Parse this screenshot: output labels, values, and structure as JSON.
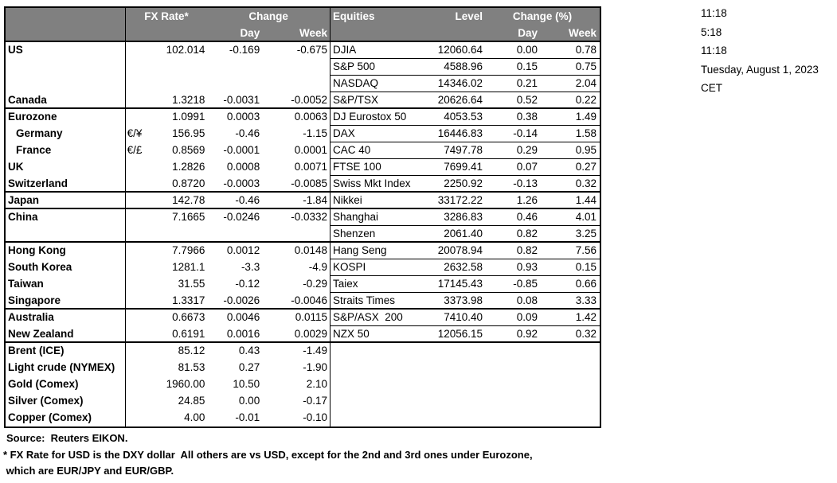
{
  "colors": {
    "header_bg": "#808080",
    "header_text": "#ffffff",
    "border": "#000000",
    "text": "#000000"
  },
  "fx_header": {
    "rate_label": "FX Rate*",
    "change_label": "Change",
    "day_label": "Day",
    "week_label": "Week"
  },
  "eq_header": {
    "name_label": "Equities",
    "level_label": "Level",
    "change_label": "Change (%)",
    "day_label": "Day",
    "week_label": "Week"
  },
  "rows": [
    {
      "fx_label": "US",
      "fx_pair": "",
      "fx_rate": "102.014",
      "fx_day": "-0.169",
      "fx_week": "-0.675",
      "eq_name": "DJIA",
      "eq_level": "12060.64",
      "eq_day": "0.00",
      "eq_week": "0.78",
      "section": false,
      "indent": false,
      "eq_border": true
    },
    {
      "fx_label": "",
      "fx_pair": "",
      "fx_rate": "",
      "fx_day": "",
      "fx_week": "",
      "eq_name": "S&P 500",
      "eq_level": "4588.96",
      "eq_day": "0.15",
      "eq_week": "0.75",
      "section": false,
      "indent": false,
      "eq_border": true
    },
    {
      "fx_label": "",
      "fx_pair": "",
      "fx_rate": "",
      "fx_day": "",
      "fx_week": "",
      "eq_name": "NASDAQ",
      "eq_level": "14346.02",
      "eq_day": "0.21",
      "eq_week": "2.04",
      "section": false,
      "indent": false,
      "eq_border": true
    },
    {
      "fx_label": "Canada",
      "fx_pair": "",
      "fx_rate": "1.3218",
      "fx_day": "-0.0031",
      "fx_week": "-0.0052",
      "eq_name": "S&P/TSX",
      "eq_level": "20626.64",
      "eq_day": "0.52",
      "eq_week": "0.22",
      "section": true,
      "indent": false,
      "eq_border": false
    },
    {
      "fx_label": "Eurozone",
      "fx_pair": "",
      "fx_rate": "1.0991",
      "fx_day": "0.0003",
      "fx_week": "0.0063",
      "eq_name": "DJ Eurostox 50",
      "eq_level": "4053.53",
      "eq_day": "0.38",
      "eq_week": "1.49",
      "section": false,
      "indent": false,
      "eq_border": true
    },
    {
      "fx_label": "Germany",
      "fx_pair": "€/¥",
      "fx_rate": "156.95",
      "fx_day": "-0.46",
      "fx_week": "-1.15",
      "eq_name": "DAX",
      "eq_level": "16446.83",
      "eq_day": "-0.14",
      "eq_week": "1.58",
      "section": false,
      "indent": true,
      "eq_border": true
    },
    {
      "fx_label": "France",
      "fx_pair": "€/£",
      "fx_rate": "0.8569",
      "fx_day": "-0.0001",
      "fx_week": "0.0001",
      "eq_name": "CAC 40",
      "eq_level": "7497.78",
      "eq_day": "0.29",
      "eq_week": "0.95",
      "section": false,
      "indent": true,
      "eq_border": true
    },
    {
      "fx_label": "UK",
      "fx_pair": "",
      "fx_rate": "1.2826",
      "fx_day": "0.0008",
      "fx_week": "0.0071",
      "eq_name": "FTSE 100",
      "eq_level": "7699.41",
      "eq_day": "0.07",
      "eq_week": "0.27",
      "section": false,
      "indent": false,
      "eq_border": true
    },
    {
      "fx_label": "Switzerland",
      "fx_pair": "",
      "fx_rate": "0.8720",
      "fx_day": "-0.0003",
      "fx_week": "-0.0085",
      "eq_name": "Swiss Mkt Index",
      "eq_level": "2250.92",
      "eq_day": "-0.13",
      "eq_week": "0.32",
      "section": true,
      "indent": false,
      "eq_border": false
    },
    {
      "fx_label": "Japan",
      "fx_pair": "",
      "fx_rate": "142.78",
      "fx_day": "-0.46",
      "fx_week": "-1.84",
      "eq_name": "Nikkei",
      "eq_level": "33172.22",
      "eq_day": "1.26",
      "eq_week": "1.44",
      "section": true,
      "indent": false,
      "eq_border": false
    },
    {
      "fx_label": "China",
      "fx_pair": "",
      "fx_rate": "7.1665",
      "fx_day": "-0.0246",
      "fx_week": "-0.0332",
      "eq_name": "Shanghai",
      "eq_level": "3286.83",
      "eq_day": "0.46",
      "eq_week": "4.01",
      "section": false,
      "indent": false,
      "eq_border": true
    },
    {
      "fx_label": "",
      "fx_pair": "",
      "fx_rate": "",
      "fx_day": "",
      "fx_week": "",
      "eq_name": "Shenzen",
      "eq_level": "2061.40",
      "eq_day": "0.82",
      "eq_week": "3.25",
      "section": true,
      "indent": false,
      "eq_border": false
    },
    {
      "fx_label": "Hong Kong",
      "fx_pair": "",
      "fx_rate": "7.7966",
      "fx_day": "0.0012",
      "fx_week": "0.0148",
      "eq_name": "Hang Seng",
      "eq_level": "20078.94",
      "eq_day": "0.82",
      "eq_week": "7.56",
      "section": false,
      "indent": false,
      "eq_border": true
    },
    {
      "fx_label": "South Korea",
      "fx_pair": "",
      "fx_rate": "1281.1",
      "fx_day": "-3.3",
      "fx_week": "-4.9",
      "eq_name": "KOSPI",
      "eq_level": "2632.58",
      "eq_day": "0.93",
      "eq_week": "0.15",
      "section": false,
      "indent": false,
      "eq_border": true
    },
    {
      "fx_label": "Taiwan",
      "fx_pair": "",
      "fx_rate": "31.55",
      "fx_day": "-0.12",
      "fx_week": "-0.29",
      "eq_name": "Taiex",
      "eq_level": "17145.43",
      "eq_day": "-0.85",
      "eq_week": "0.66",
      "section": false,
      "indent": false,
      "eq_border": true
    },
    {
      "fx_label": "Singapore",
      "fx_pair": "",
      "fx_rate": "1.3317",
      "fx_day": "-0.0026",
      "fx_week": "-0.0046",
      "eq_name": "Straits Times",
      "eq_level": "3373.98",
      "eq_day": "0.08",
      "eq_week": "3.33",
      "section": true,
      "indent": false,
      "eq_border": false
    },
    {
      "fx_label": "Australia",
      "fx_pair": "",
      "fx_rate": "0.6673",
      "fx_day": "0.0046",
      "fx_week": "0.0115",
      "eq_name": "S&P/ASX  200",
      "eq_level": "7410.40",
      "eq_day": "0.09",
      "eq_week": "1.42",
      "section": false,
      "indent": false,
      "eq_border": true
    },
    {
      "fx_label": "New Zealand",
      "fx_pair": "",
      "fx_rate": "0.6191",
      "fx_day": "0.0016",
      "fx_week": "0.0029",
      "eq_name": "NZX 50",
      "eq_level": "12056.15",
      "eq_day": "0.92",
      "eq_week": "0.32",
      "section": true,
      "indent": false,
      "eq_border": false
    },
    {
      "fx_label": "Brent (ICE)",
      "fx_pair": "",
      "fx_rate": "85.12",
      "fx_day": "0.43",
      "fx_week": "-1.49",
      "eq_name": "",
      "eq_level": "",
      "eq_day": "",
      "eq_week": "",
      "section": false,
      "indent": false,
      "eq_border": false
    },
    {
      "fx_label": "Light crude (NYMEX)",
      "fx_pair": "",
      "fx_rate": "81.53",
      "fx_day": "0.27",
      "fx_week": "-1.90",
      "eq_name": "",
      "eq_level": "",
      "eq_day": "",
      "eq_week": "",
      "section": false,
      "indent": false,
      "eq_border": false
    },
    {
      "fx_label": "Gold (Comex)",
      "fx_pair": "",
      "fx_rate": "1960.00",
      "fx_day": "10.50",
      "fx_week": "2.10",
      "eq_name": "",
      "eq_level": "",
      "eq_day": "",
      "eq_week": "",
      "section": false,
      "indent": false,
      "eq_border": false
    },
    {
      "fx_label": "Silver (Comex)",
      "fx_pair": "",
      "fx_rate": "24.85",
      "fx_day": "0.00",
      "fx_week": "-0.17",
      "eq_name": "",
      "eq_level": "",
      "eq_day": "",
      "eq_week": "",
      "section": false,
      "indent": false,
      "eq_border": false
    },
    {
      "fx_label": "Copper (Comex)",
      "fx_pair": "",
      "fx_rate": "4.00",
      "fx_day": "-0.01",
      "fx_week": "-0.10",
      "eq_name": "",
      "eq_level": "",
      "eq_day": "",
      "eq_week": "",
      "section": false,
      "indent": false,
      "eq_border": false
    }
  ],
  "info": {
    "time1": "11:18",
    "time2": "5:18",
    "time3": "11:18",
    "date": "Tuesday, August 1, 2023",
    "timezone": "CET"
  },
  "footer": {
    "source": "Source:  Reuters EIKON.",
    "footnote_line1": "* FX Rate for USD is the DXY dollar  All others are vs USD, except for the 2nd and 3rd ones under Eurozone,",
    "footnote_line2": " which are EUR/JPY and EUR/GBP."
  }
}
